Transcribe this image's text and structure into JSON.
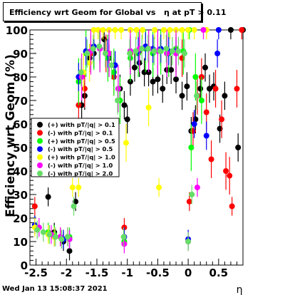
{
  "chart_data": {
    "type": "scatter",
    "title": "Efficiency wrt Geom for Global vs   η at pT > 0.11",
    "xlabel": "η",
    "ylabel": "Efficiency wrt Geom (%)",
    "xlim": [
      -2.6,
      0.9
    ],
    "ylim": [
      0,
      100
    ],
    "x_ticks": [
      "-2.5",
      "-2",
      "-1.5",
      "-1",
      "-0.5",
      "0",
      "0.5"
    ],
    "y_ticks": [
      "0",
      "10",
      "20",
      "30",
      "40",
      "50",
      "60",
      "70",
      "80",
      "90",
      "100"
    ],
    "grid": false,
    "legend_position": "left-middle",
    "series": [
      {
        "name": "(+) with pT/|q| > 0.1",
        "color": "#000000",
        "points": [
          [
            -2.52,
            17
          ],
          [
            -2.3,
            29
          ],
          [
            -2.2,
            14
          ],
          [
            -2.05,
            10
          ],
          [
            -1.95,
            6
          ],
          [
            -1.85,
            27
          ],
          [
            -1.75,
            68
          ],
          [
            -1.7,
            72
          ],
          [
            -1.62,
            88
          ],
          [
            -1.55,
            90
          ],
          [
            -1.45,
            92
          ],
          [
            -1.38,
            96
          ],
          [
            -1.3,
            88
          ],
          [
            -1.22,
            82
          ],
          [
            -1.12,
            75
          ],
          [
            -1.05,
            68
          ],
          [
            -1.0,
            62
          ],
          [
            -0.95,
            78
          ],
          [
            -0.88,
            84
          ],
          [
            -0.8,
            86
          ],
          [
            -0.72,
            82
          ],
          [
            -0.65,
            82
          ],
          [
            -0.58,
            78
          ],
          [
            -0.5,
            79
          ],
          [
            -0.42,
            75
          ],
          [
            -0.35,
            83
          ],
          [
            -0.28,
            83
          ],
          [
            -0.2,
            79
          ],
          [
            -0.1,
            72
          ],
          [
            -0.02,
            76
          ],
          [
            0.05,
            57
          ],
          [
            0.12,
            62
          ],
          [
            0.2,
            75
          ],
          [
            0.28,
            84
          ],
          [
            0.35,
            75
          ],
          [
            0.42,
            76
          ],
          [
            0.52,
            58
          ],
          [
            0.6,
            72
          ],
          [
            0.7,
            100
          ],
          [
            0.82,
            50
          ],
          [
            0.9,
            100
          ]
        ]
      },
      {
        "name": "(-) with pT/|q| > 0.1",
        "color": "#ff0000",
        "points": [
          [
            -2.52,
            25
          ],
          [
            -2.2,
            12
          ],
          [
            -2.1,
            12
          ],
          [
            -1.98,
            12
          ],
          [
            -1.8,
            68
          ],
          [
            -1.7,
            75
          ],
          [
            -1.6,
            90
          ],
          [
            -1.45,
            92
          ],
          [
            -1.35,
            90
          ],
          [
            -1.22,
            80
          ],
          [
            -1.05,
            16
          ],
          [
            -0.95,
            90
          ],
          [
            -0.8,
            91
          ],
          [
            -0.65,
            92
          ],
          [
            -0.5,
            91
          ],
          [
            -0.35,
            90
          ],
          [
            -0.2,
            90
          ],
          [
            -0.1,
            88
          ],
          [
            0.02,
            27
          ],
          [
            0.08,
            57
          ],
          [
            0.15,
            72
          ],
          [
            0.22,
            80
          ],
          [
            0.3,
            65
          ],
          [
            0.38,
            45
          ],
          [
            0.45,
            75
          ],
          [
            0.55,
            62
          ],
          [
            0.62,
            40
          ],
          [
            0.68,
            38
          ],
          [
            0.72,
            25
          ],
          [
            0.8,
            75
          ],
          [
            0.88,
            100
          ]
        ]
      },
      {
        "name": "(+) with pT/|q| > 0.5",
        "color": "#00ff00",
        "points": [
          [
            -2.52,
            17
          ],
          [
            -2.3,
            14
          ],
          [
            -2.2,
            13
          ],
          [
            -2.05,
            11
          ],
          [
            -1.95,
            12
          ],
          [
            -1.8,
            78
          ],
          [
            -1.68,
            90
          ],
          [
            -1.55,
            93
          ],
          [
            -1.45,
            92
          ],
          [
            -1.32,
            88
          ],
          [
            -1.22,
            82
          ],
          [
            -1.12,
            70
          ],
          [
            -1.05,
            10
          ],
          [
            -0.95,
            88
          ],
          [
            -0.82,
            90
          ],
          [
            -0.7,
            92
          ],
          [
            -0.58,
            90
          ],
          [
            -0.45,
            91
          ],
          [
            -0.32,
            90
          ],
          [
            -0.2,
            92
          ],
          [
            -0.08,
            91
          ],
          [
            0.02,
            100
          ],
          [
            0.05,
            50
          ],
          [
            0.12,
            80
          ],
          [
            0.22,
            70
          ]
        ]
      },
      {
        "name": "(-) with pT/|q| > 0.5",
        "color": "#0000ff",
        "points": [
          [
            -2.52,
            17
          ],
          [
            -2.2,
            12
          ],
          [
            -2.05,
            11
          ],
          [
            -1.95,
            11
          ],
          [
            -1.8,
            80
          ],
          [
            -1.68,
            91
          ],
          [
            -1.55,
            93
          ],
          [
            -1.45,
            92
          ],
          [
            -1.32,
            90
          ],
          [
            -1.2,
            85
          ],
          [
            -1.05,
            12
          ],
          [
            -0.95,
            91
          ],
          [
            -0.82,
            91
          ],
          [
            -0.7,
            93
          ],
          [
            -0.58,
            92
          ],
          [
            -0.45,
            92
          ],
          [
            -0.32,
            91
          ],
          [
            -0.2,
            91
          ],
          [
            0.0,
            11
          ],
          [
            0.1,
            60
          ],
          [
            0.3,
            55
          ],
          [
            0.48,
            90
          ],
          [
            0.5,
            100
          ]
        ]
      },
      {
        "name": "(+) with pT/|q| > 1.0",
        "color": "#ffff00",
        "points": [
          [
            -2.52,
            16
          ],
          [
            -2.3,
            13
          ],
          [
            -2.2,
            12
          ],
          [
            -1.9,
            33
          ],
          [
            -1.8,
            33
          ],
          [
            -1.72,
            82
          ],
          [
            -1.62,
            86
          ],
          [
            -1.55,
            100
          ],
          [
            -1.48,
            100
          ],
          [
            -1.4,
            100
          ],
          [
            -1.3,
            100
          ],
          [
            -1.2,
            100
          ],
          [
            -1.1,
            100
          ],
          [
            -1.02,
            52
          ],
          [
            -0.95,
            100
          ],
          [
            -0.85,
            100
          ],
          [
            -0.75,
            100
          ],
          [
            -0.65,
            67
          ],
          [
            -0.55,
            100
          ],
          [
            -0.48,
            33
          ],
          [
            -0.4,
            100
          ],
          [
            -0.3,
            100
          ],
          [
            -0.2,
            100
          ],
          [
            -0.1,
            100
          ],
          [
            0.0,
            100
          ],
          [
            0.1,
            100
          ],
          [
            0.3,
            100
          ]
        ]
      },
      {
        "name": "(-) with pT/|q| > 1.0",
        "color": "#ff00ff",
        "points": [
          [
            -2.45,
            16
          ],
          [
            -2.25,
            13
          ],
          [
            -2.1,
            12
          ],
          [
            -1.95,
            11
          ],
          [
            -1.75,
            80
          ],
          [
            -1.6,
            91
          ],
          [
            -1.45,
            92
          ],
          [
            -1.3,
            90
          ],
          [
            -1.15,
            75
          ],
          [
            -1.05,
            9
          ],
          [
            -0.95,
            91
          ],
          [
            -0.8,
            92
          ],
          [
            -0.65,
            92
          ],
          [
            -0.5,
            91
          ],
          [
            -0.35,
            90
          ],
          [
            -0.2,
            90
          ],
          [
            0.0,
            10
          ],
          [
            0.15,
            33
          ],
          [
            0.25,
            100
          ]
        ]
      },
      {
        "name": "(-) with pT/|q| > 2.0",
        "color": "#66dd66",
        "points": [
          [
            -2.48,
            15
          ],
          [
            -2.38,
            14
          ],
          [
            -2.28,
            13
          ],
          [
            -2.18,
            12
          ],
          [
            -2.08,
            11
          ],
          [
            -1.98,
            12
          ],
          [
            -1.88,
            25
          ],
          [
            -1.76,
            82
          ],
          [
            -1.66,
            90
          ],
          [
            -1.56,
            92
          ],
          [
            -1.46,
            93
          ],
          [
            -1.36,
            90
          ],
          [
            -1.26,
            85
          ],
          [
            -1.16,
            70
          ],
          [
            -1.06,
            12
          ],
          [
            -0.96,
            90
          ],
          [
            -0.86,
            91
          ],
          [
            -0.76,
            92
          ],
          [
            -0.66,
            92
          ],
          [
            -0.56,
            91
          ],
          [
            -0.46,
            91
          ],
          [
            -0.36,
            92
          ],
          [
            -0.26,
            91
          ],
          [
            -0.16,
            91
          ],
          [
            -0.06,
            90
          ],
          [
            0.0,
            10
          ],
          [
            0.06,
            30
          ],
          [
            0.14,
            72
          ]
        ]
      }
    ]
  },
  "footer": {
    "timestamp": "Wed Jan 13 15:08:37 2021"
  }
}
